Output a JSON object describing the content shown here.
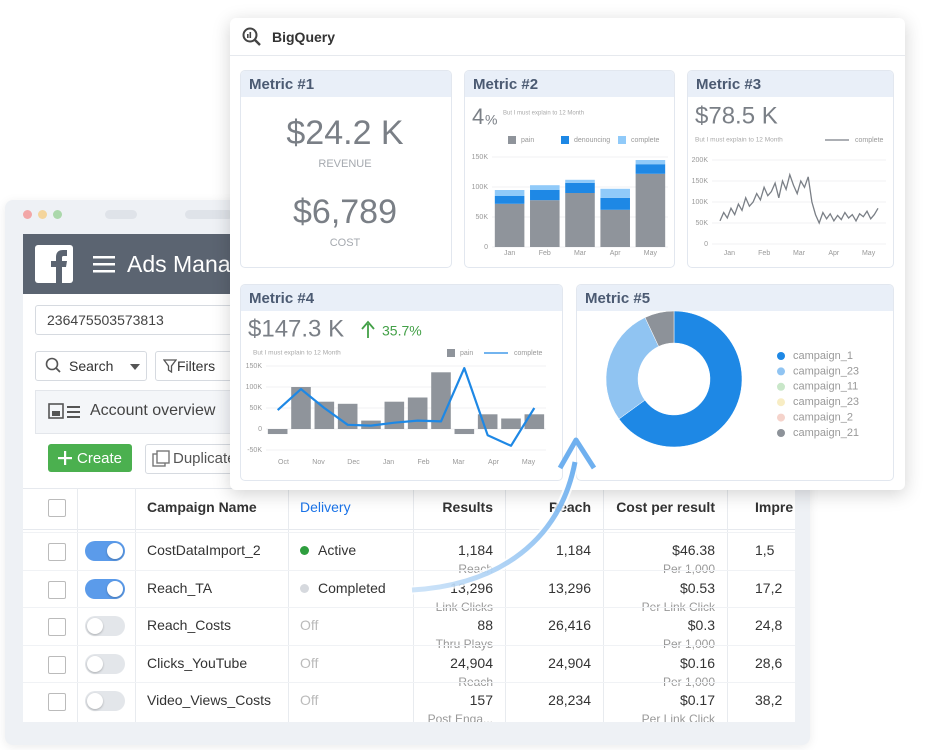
{
  "ads_manager": {
    "app_title": "Ads Manager",
    "account_id": "236475503573813",
    "search": "Search",
    "filters": "Filters",
    "account_overview": "Account overview",
    "create": "Create",
    "duplicate": "Duplicate",
    "columns": [
      "Campaign Name",
      "Delivery",
      "Results",
      "Reach",
      "Cost per result",
      "Impre"
    ],
    "rows": [
      {
        "name": "CostDataImport_2",
        "enabled": true,
        "delivery": "Active",
        "dot_color": "#2e9e3e",
        "results": "1,184",
        "results_sub": "Reach",
        "reach": "1,184",
        "cost": "$46.38",
        "cost_sub": "Per 1,000",
        "impressions": "1,5"
      },
      {
        "name": "Reach_TA",
        "enabled": true,
        "delivery": "Completed",
        "dot_color": "#d6d9de",
        "results": "13,296",
        "results_sub": "Link Clicks",
        "reach": "13,296",
        "cost": "$0.53",
        "cost_sub": "Per Link Click",
        "impressions": "17,2"
      },
      {
        "name": "Reach_Costs",
        "enabled": false,
        "delivery": "Off",
        "results": "88",
        "results_sub": "Thru Plays",
        "reach": "26,416",
        "cost": "$0.3",
        "cost_sub": "Per 1,000",
        "impressions": "24,8"
      },
      {
        "name": "Clicks_YouTube",
        "enabled": false,
        "delivery": "Off",
        "results": "24,904",
        "results_sub": "Reach",
        "reach": "24,904",
        "cost": "$0.16",
        "cost_sub": "Per 1,000",
        "impressions": "28,6"
      },
      {
        "name": "Video_Views_Costs",
        "enabled": false,
        "delivery": "Off",
        "results": "157",
        "results_sub": "Post Enga...",
        "reach": "28,234",
        "cost": "$0.17",
        "cost_sub": "Per Link Click",
        "impressions": "38,2"
      }
    ]
  },
  "bigquery": {
    "title": "BigQuery",
    "metric1": {
      "title": "Metric #1",
      "value": "$24.2 K",
      "label": "REVENUE",
      "value2": "$6,789",
      "label2": "COST"
    },
    "metric2": {
      "title": "Metric #2",
      "headline_value": "4",
      "headline_unit": "%",
      "note": "But I must explain to 12 Month",
      "chart": {
        "type": "bar",
        "stacked": true,
        "categories": [
          "Jan",
          "Feb",
          "Mar",
          "Apr",
          "May"
        ],
        "series": [
          {
            "name": "pain",
            "color": "#8f949b",
            "values": [
              72000,
              78000,
              90000,
              62000,
              122000
            ]
          },
          {
            "name": "denouncing",
            "color": "#1e88e5",
            "values": [
              13000,
              17000,
              17000,
              20000,
              16000
            ]
          },
          {
            "name": "complete",
            "color": "#90caf9",
            "values": [
              10000,
              8000,
              5000,
              15000,
              7000
            ]
          }
        ],
        "ylim": [
          0,
          150000
        ],
        "yticks": [
          0,
          {
            "value": 50000,
            "label": "50K"
          },
          {
            "value": 100000,
            "label": "100K"
          },
          {
            "value": 150000,
            "label": "150K"
          }
        ]
      }
    },
    "metric3": {
      "title": "Metric #3",
      "headline": "$78.5 K",
      "note": "But I must explain to 12 Month",
      "chart": {
        "type": "line",
        "x_labels": [
          "Jan",
          "Feb",
          "Mar",
          "Apr",
          "May"
        ],
        "series": [
          {
            "name": "complete",
            "color": "#7a7f86",
            "values": [
              55000,
              75000,
              62000,
              85000,
              70000,
              95000,
              80000,
              110000,
              90000,
              100000,
              120000,
              105000,
              135000,
              115000,
              125000,
              145000,
              110000,
              150000,
              130000,
              165000,
              140000,
              120000,
              150000,
              135000,
              160000,
              100000,
              70000,
              50000,
              75000,
              60000,
              72000,
              55000,
              68000,
              58000,
              75000,
              62000,
              70000,
              55000,
              72000,
              65000,
              78000,
              60000,
              70000,
              85000
            ]
          }
        ],
        "ylim": [
          0,
          200000
        ],
        "yticks": [
          0,
          {
            "value": 50000,
            "label": "50K"
          },
          {
            "value": 100000,
            "label": "100K"
          },
          {
            "value": 150000,
            "label": "150K"
          },
          {
            "value": 200000,
            "label": "200K"
          }
        ]
      }
    },
    "metric4": {
      "title": "Metric #4",
      "headline": "$147.3 K",
      "change": "35.7%",
      "note": "But I must explain to 12 Month",
      "chart": {
        "type": "bar_line",
        "x_labels": [
          "Oct",
          "Nov",
          "Dec",
          "Jan",
          "Feb",
          "Mar",
          "Apr",
          "May"
        ],
        "series": [
          {
            "name": "pain",
            "color": "#8f949b",
            "kind": "bar",
            "values": [
              -12000,
              100000,
              65000,
              60000,
              20000,
              65000,
              75000,
              135000,
              -12000,
              35000,
              25000,
              35000
            ]
          },
          {
            "name": "complete",
            "color": "#1e88e5",
            "kind": "line",
            "values": [
              45000,
              95000,
              50000,
              10000,
              8000,
              15000,
              20000,
              18000,
              145000,
              -15000,
              -40000,
              50000
            ]
          }
        ],
        "ylim": [
          -50000,
          150000
        ],
        "yticks": [
          {
            "value": -50000,
            "label": "-50K"
          },
          0,
          {
            "value": 50000,
            "label": "50K"
          },
          {
            "value": 100000,
            "label": "100K"
          },
          {
            "value": 150000,
            "label": "150K"
          }
        ]
      }
    },
    "metric5": {
      "title": "Metric #5",
      "chart": {
        "type": "donut",
        "series": [
          {
            "name": "campaign_1",
            "color": "#1e88e5",
            "value": 65
          },
          {
            "name": "campaign_23",
            "color": "#90c4f2",
            "value": 28
          },
          {
            "name": "campaign_11",
            "color": "#c9e7c9",
            "value": 0
          },
          {
            "name": "campaign_23",
            "color": "#f8edc4",
            "value": 0
          },
          {
            "name": "campaign_2",
            "color": "#f5d3cb",
            "value": 0
          },
          {
            "name": "campaign_21",
            "color": "#8d9299",
            "value": 7
          }
        ]
      }
    }
  }
}
